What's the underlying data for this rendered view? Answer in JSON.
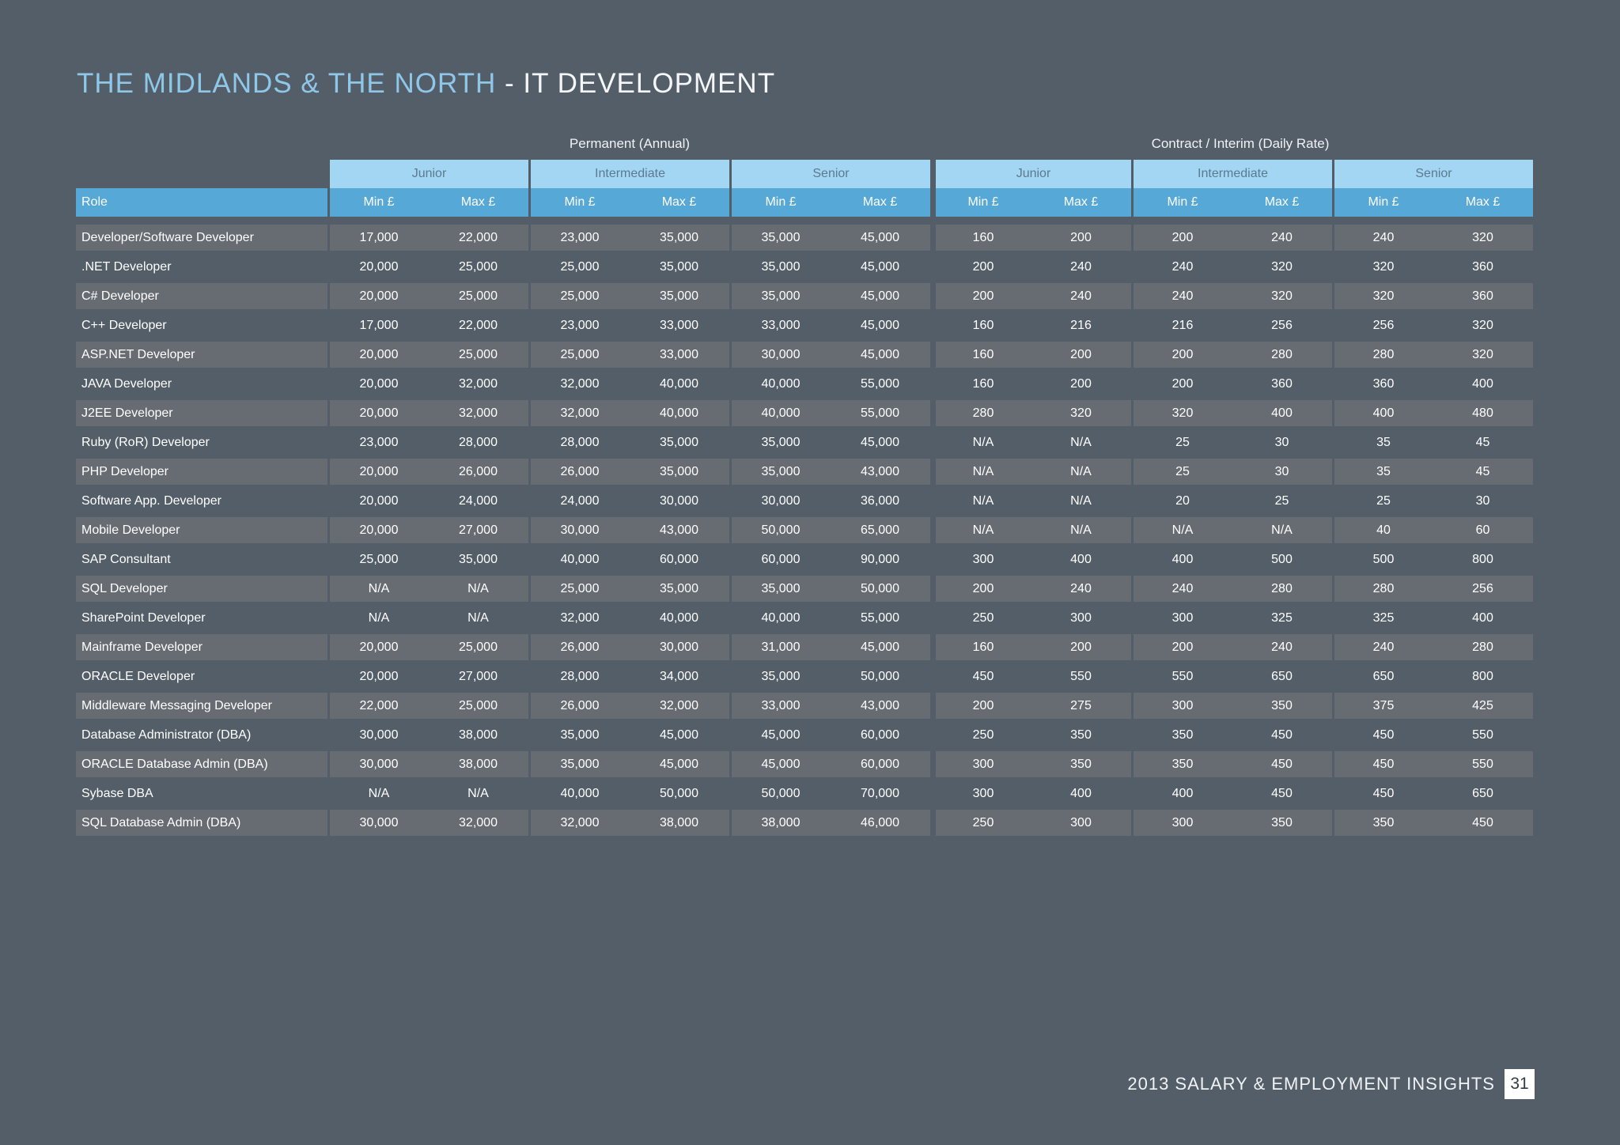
{
  "title": {
    "accent": "THE MIDLANDS & THE NORTH",
    "main": " - IT DEVELOPMENT"
  },
  "groups": {
    "permanent": "Permanent (Annual)",
    "contract": "Contract / Interim (Daily Rate)"
  },
  "levels": [
    "Junior",
    "Intermediate",
    "Senior",
    "Junior",
    "Intermediate",
    "Senior"
  ],
  "header": {
    "role": "Role",
    "min": "Min £",
    "max": "Max £"
  },
  "rows": [
    [
      "Developer/Software Developer",
      "17,000",
      "22,000",
      "23,000",
      "35,000",
      "35,000",
      "45,000",
      "160",
      "200",
      "200",
      "240",
      "240",
      "320"
    ],
    [
      ".NET Developer",
      "20,000",
      "25,000",
      "25,000",
      "35,000",
      "35,000",
      "45,000",
      "200",
      "240",
      "240",
      "320",
      "320",
      "360"
    ],
    [
      "C# Developer",
      "20,000",
      "25,000",
      "25,000",
      "35,000",
      "35,000",
      "45,000",
      "200",
      "240",
      "240",
      "320",
      "320",
      "360"
    ],
    [
      "C++ Developer",
      "17,000",
      "22,000",
      "23,000",
      "33,000",
      "33,000",
      "45,000",
      "160",
      "216",
      "216",
      "256",
      "256",
      "320"
    ],
    [
      "ASP.NET Developer",
      "20,000",
      "25,000",
      "25,000",
      "33,000",
      "30,000",
      "45,000",
      "160",
      "200",
      "200",
      "280",
      "280",
      "320"
    ],
    [
      "JAVA Developer",
      "20,000",
      "32,000",
      "32,000",
      "40,000",
      "40,000",
      "55,000",
      "160",
      "200",
      "200",
      "360",
      "360",
      "400"
    ],
    [
      "J2EE Developer",
      "20,000",
      "32,000",
      "32,000",
      "40,000",
      "40,000",
      "55,000",
      "280",
      "320",
      "320",
      "400",
      "400",
      "480"
    ],
    [
      "Ruby (RoR) Developer",
      "23,000",
      "28,000",
      "28,000",
      "35,000",
      "35,000",
      "45,000",
      "N/A",
      "N/A",
      "25",
      "30",
      "35",
      "45"
    ],
    [
      "PHP Developer",
      "20,000",
      "26,000",
      "26,000",
      "35,000",
      "35,000",
      "43,000",
      "N/A",
      "N/A",
      "25",
      "30",
      "35",
      "45"
    ],
    [
      "Software App. Developer",
      "20,000",
      "24,000",
      "24,000",
      "30,000",
      "30,000",
      "36,000",
      "N/A",
      "N/A",
      "20",
      "25",
      "25",
      "30"
    ],
    [
      "Mobile Developer",
      "20,000",
      "27,000",
      "30,000",
      "43,000",
      "50,000",
      "65,000",
      "N/A",
      "N/A",
      "N/A",
      "N/A",
      "40",
      "60"
    ],
    [
      "SAP Consultant",
      "25,000",
      "35,000",
      "40,000",
      "60,000",
      "60,000",
      "90,000",
      "300",
      "400",
      "400",
      "500",
      "500",
      "800"
    ],
    [
      "SQL Developer",
      "N/A",
      "N/A",
      "25,000",
      "35,000",
      "35,000",
      "50,000",
      "200",
      "240",
      "240",
      "280",
      "280",
      "256"
    ],
    [
      "SharePoint Developer",
      "N/A",
      "N/A",
      "32,000",
      "40,000",
      "40,000",
      "55,000",
      "250",
      "300",
      "300",
      "325",
      "325",
      "400"
    ],
    [
      "Mainframe Developer",
      "20,000",
      "25,000",
      "26,000",
      "30,000",
      "31,000",
      "45,000",
      "160",
      "200",
      "200",
      "240",
      "240",
      "280"
    ],
    [
      "ORACLE Developer",
      "20,000",
      "27,000",
      "28,000",
      "34,000",
      "35,000",
      "50,000",
      "450",
      "550",
      "550",
      "650",
      "650",
      "800"
    ],
    [
      "Middleware Messaging Developer",
      "22,000",
      "25,000",
      "26,000",
      "32,000",
      "33,000",
      "43,000",
      "200",
      "275",
      "300",
      "350",
      "375",
      "425"
    ],
    [
      "Database Administrator (DBA)",
      "30,000",
      "38,000",
      "35,000",
      "45,000",
      "45,000",
      "60,000",
      "250",
      "350",
      "350",
      "450",
      "450",
      "550"
    ],
    [
      "ORACLE Database Admin (DBA)",
      "30,000",
      "38,000",
      "35,000",
      "45,000",
      "45,000",
      "60,000",
      "300",
      "350",
      "350",
      "450",
      "450",
      "550"
    ],
    [
      "Sybase DBA",
      "N/A",
      "N/A",
      "40,000",
      "50,000",
      "50,000",
      "70,000",
      "300",
      "400",
      "400",
      "450",
      "450",
      "650"
    ],
    [
      "SQL Database Admin (DBA)",
      "30,000",
      "32,000",
      "32,000",
      "38,000",
      "38,000",
      "46,000",
      "250",
      "300",
      "300",
      "350",
      "350",
      "450"
    ]
  ],
  "footer": {
    "text": "2013 SALARY & EMPLOYMENT INSIGHTS",
    "page": "31"
  }
}
